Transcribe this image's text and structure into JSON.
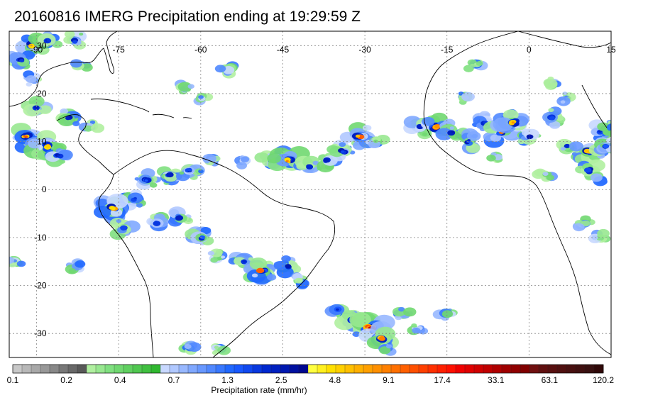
{
  "title": "20160816 IMERG Precipitation ending at 19:29:59 Z",
  "map": {
    "lon_range": [
      -95,
      15
    ],
    "lat_range": [
      -35,
      33
    ],
    "lon_ticks": [
      "-90",
      "-75",
      "-60",
      "-45",
      "-30",
      "-15",
      "0",
      "15"
    ],
    "lon_tick_values": [
      -90,
      -75,
      -60,
      -45,
      -30,
      -15,
      0,
      15
    ],
    "lat_ticks": [
      "30",
      "20",
      "10",
      "0",
      "-10",
      "-20",
      "-30"
    ],
    "lat_tick_values": [
      30,
      20,
      10,
      0,
      -10,
      -20,
      -30
    ],
    "grid": true,
    "gridline_style": "dotted",
    "coastline_color": "#000000"
  },
  "colorbar": {
    "title": "Precipitation rate (mm/hr)",
    "labels": [
      "0.1",
      "0.2",
      "0.4",
      "0.7",
      "1.3",
      "2.5",
      "4.8",
      "9.1",
      "17.4",
      "33.1",
      "63.1",
      "120.2"
    ],
    "colors": [
      "#c8c8c8",
      "#b8b8b8",
      "#a8a8a8",
      "#989898",
      "#888888",
      "#787878",
      "#686868",
      "#585858",
      "#b0f0a0",
      "#98e890",
      "#80e080",
      "#70d870",
      "#60d060",
      "#50c850",
      "#40c040",
      "#30b830",
      "#c8d8ff",
      "#b0c8ff",
      "#98b8ff",
      "#80a8ff",
      "#6898ff",
      "#5088ff",
      "#3878ff",
      "#2068ff",
      "#1858ff",
      "#1048f0",
      "#0838e0",
      "#0028d0",
      "#0020c0",
      "#0018b0",
      "#0010a0",
      "#000890",
      "#ffff40",
      "#fff020",
      "#ffe000",
      "#ffd000",
      "#ffc000",
      "#ffb000",
      "#ffa000",
      "#ff9000",
      "#ff8000",
      "#ff7000",
      "#ff6000",
      "#ff5000",
      "#ff4000",
      "#ff3000",
      "#ff2000",
      "#ff1000",
      "#f00000",
      "#e00000",
      "#d00000",
      "#c00000",
      "#b00000",
      "#a00000",
      "#900000",
      "#800000",
      "#701010",
      "#601010",
      "#581010",
      "#501010",
      "#481010",
      "#401010",
      "#381010",
      "#300808"
    ]
  },
  "precip_cells": [
    {
      "lon": -91,
      "lat": 30,
      "intensity": 3
    },
    {
      "lon": -88,
      "lat": 31,
      "intensity": 2
    },
    {
      "lon": -93,
      "lat": 27,
      "intensity": 2
    },
    {
      "lon": -83,
      "lat": 31,
      "intensity": 2
    },
    {
      "lon": -82,
      "lat": 26,
      "intensity": 1
    },
    {
      "lon": -91,
      "lat": 23,
      "intensity": 1
    },
    {
      "lon": -90,
      "lat": 17,
      "intensity": 2
    },
    {
      "lon": -84,
      "lat": 15,
      "intensity": 2
    },
    {
      "lon": -80,
      "lat": 13,
      "intensity": 1
    },
    {
      "lon": -92,
      "lat": 11,
      "intensity": 3
    },
    {
      "lon": -88,
      "lat": 9,
      "intensity": 3
    },
    {
      "lon": -86,
      "lat": 7,
      "intensity": 2
    },
    {
      "lon": -66,
      "lat": 3,
      "intensity": 2
    },
    {
      "lon": -62,
      "lat": 4,
      "intensity": 2
    },
    {
      "lon": -58,
      "lat": 6,
      "intensity": 1
    },
    {
      "lon": -70,
      "lat": 2,
      "intensity": 2
    },
    {
      "lon": -72,
      "lat": -2,
      "intensity": 2
    },
    {
      "lon": -76,
      "lat": -4,
      "intensity": 3
    },
    {
      "lon": -74,
      "lat": -8,
      "intensity": 2
    },
    {
      "lon": -68,
      "lat": -7,
      "intensity": 2
    },
    {
      "lon": -64,
      "lat": -6,
      "intensity": 2
    },
    {
      "lon": -60,
      "lat": -10,
      "intensity": 2
    },
    {
      "lon": -57,
      "lat": -14,
      "intensity": 1
    },
    {
      "lon": -52,
      "lat": -15,
      "intensity": 2
    },
    {
      "lon": -49,
      "lat": -17,
      "intensity": 3
    },
    {
      "lon": -44,
      "lat": -16,
      "intensity": 2
    },
    {
      "lon": -42,
      "lat": -19,
      "intensity": 1
    },
    {
      "lon": -63,
      "lat": 21,
      "intensity": 1
    },
    {
      "lon": -60,
      "lat": 19,
      "intensity": 1
    },
    {
      "lon": -55,
      "lat": 25,
      "intensity": 1
    },
    {
      "lon": -52,
      "lat": 6,
      "intensity": 1
    },
    {
      "lon": -47,
      "lat": 6,
      "intensity": 2
    },
    {
      "lon": -44,
      "lat": 6,
      "intensity": 3
    },
    {
      "lon": -40,
      "lat": 5,
      "intensity": 2
    },
    {
      "lon": -37,
      "lat": 6,
      "intensity": 2
    },
    {
      "lon": -34,
      "lat": 8,
      "intensity": 2
    },
    {
      "lon": -31,
      "lat": 11,
      "intensity": 3
    },
    {
      "lon": -28,
      "lat": 10,
      "intensity": 1
    },
    {
      "lon": -20,
      "lat": 13,
      "intensity": 2
    },
    {
      "lon": -17,
      "lat": 13,
      "intensity": 3
    },
    {
      "lon": -14,
      "lat": 12,
      "intensity": 2
    },
    {
      "lon": -11,
      "lat": 10,
      "intensity": 2
    },
    {
      "lon": -8,
      "lat": 14,
      "intensity": 2
    },
    {
      "lon": -5,
      "lat": 12,
      "intensity": 3
    },
    {
      "lon": -3,
      "lat": 14,
      "intensity": 3
    },
    {
      "lon": 0,
      "lat": 11,
      "intensity": 2
    },
    {
      "lon": 4,
      "lat": 15,
      "intensity": 2
    },
    {
      "lon": 7,
      "lat": 9,
      "intensity": 2
    },
    {
      "lon": 9,
      "lat": 7,
      "intensity": 1
    },
    {
      "lon": 11,
      "lat": 8,
      "intensity": 3
    },
    {
      "lon": 13,
      "lat": 12,
      "intensity": 2
    },
    {
      "lon": 15,
      "lat": 13,
      "intensity": 1
    },
    {
      "lon": 11,
      "lat": 4,
      "intensity": 2
    },
    {
      "lon": 14,
      "lat": 9,
      "intensity": 2
    },
    {
      "lon": 4,
      "lat": 22,
      "intensity": 1
    },
    {
      "lon": 7,
      "lat": 19,
      "intensity": 1
    },
    {
      "lon": -12,
      "lat": 19,
      "intensity": 1
    },
    {
      "lon": -10,
      "lat": 26,
      "intensity": 1
    },
    {
      "lon": 13,
      "lat": 2,
      "intensity": 1
    },
    {
      "lon": 3,
      "lat": 3,
      "intensity": 1
    },
    {
      "lon": -6,
      "lat": 7,
      "intensity": 1
    },
    {
      "lon": -35,
      "lat": -25,
      "intensity": 2
    },
    {
      "lon": -32,
      "lat": -27,
      "intensity": 3
    },
    {
      "lon": -29,
      "lat": -29,
      "intensity": 4
    },
    {
      "lon": -27,
      "lat": -31,
      "intensity": 3
    },
    {
      "lon": -23,
      "lat": -26,
      "intensity": 1
    },
    {
      "lon": -20,
      "lat": -29,
      "intensity": 1
    },
    {
      "lon": -26,
      "lat": -33,
      "intensity": 1
    },
    {
      "lon": -15,
      "lat": -26,
      "intensity": 1
    },
    {
      "lon": -62,
      "lat": -33,
      "intensity": 1
    },
    {
      "lon": -57,
      "lat": -33,
      "intensity": 1
    },
    {
      "lon": -83,
      "lat": -16,
      "intensity": 1
    },
    {
      "lon": -94,
      "lat": -15,
      "intensity": 1
    },
    {
      "lon": 10,
      "lat": -7,
      "intensity": 1
    },
    {
      "lon": 13,
      "lat": -10,
      "intensity": 1
    }
  ]
}
